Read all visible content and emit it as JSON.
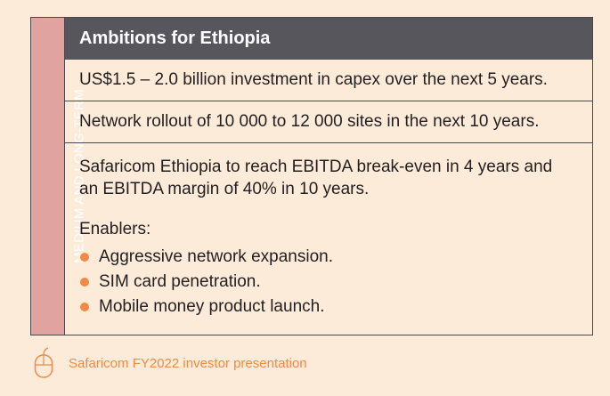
{
  "side_label": "MEDIUM AND LONG-TERM",
  "header": {
    "title": "Ambitions for Ethiopia"
  },
  "rows": {
    "capex": "US$1.5 – 2.0 billion investment in capex over the next 5 years.",
    "network": "Network rollout of 10 000 to 12 000 sites in the next 10 years.",
    "ebitda_line1": "Safaricom Ethiopia to reach EBITDA break-even in 4 years and",
    "ebitda_line2": "an EBITDA margin of 40% in 10 years."
  },
  "enablers": {
    "title": "Enablers:",
    "items": [
      "Aggressive network expansion.",
      "SIM card penetration.",
      "Mobile money product launch."
    ]
  },
  "footer": {
    "icon": "mouse-icon",
    "source": "Safaricom FY2022 investor presentation"
  },
  "colors": {
    "background": "#fcebd9",
    "header": "#56565c",
    "side_bar": "#e1a3a0",
    "accent": "#f08a46"
  }
}
